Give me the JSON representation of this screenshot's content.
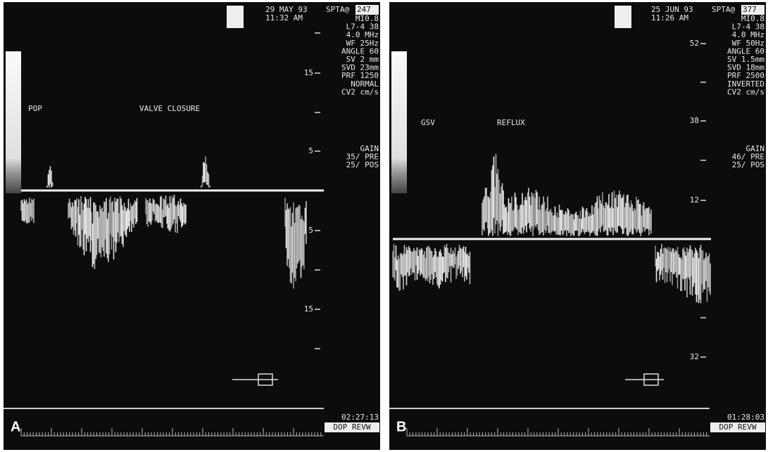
{
  "panels": [
    {
      "label": "A",
      "date": "29 MAY 93",
      "time": "11:32 AM",
      "spta": "SPTA@",
      "spta_value": "247",
      "params": [
        "MI0.8",
        "L7-4 38",
        "4.0 MHz",
        "WF 25Hz",
        "ANGLE 60",
        "SV 2 mm",
        "SVD 23mm",
        "PRF 1250",
        "NORMAL",
        "CV2 cm/s"
      ],
      "gain": [
        "GAIN",
        "35/ PRE",
        "25/ POS"
      ],
      "scale": [
        "15",
        "5",
        "5",
        "15"
      ],
      "vessel": "POP",
      "annotation": "VALVE CLOSURE",
      "timer": "02:27:13",
      "mode": "DOP REVW"
    },
    {
      "label": "B",
      "date": "25 JUN 93",
      "time": "11:26 AM",
      "spta": "SPTA@",
      "spta_value": "377",
      "params": [
        "MI0.8",
        "L7-4 38",
        "4.0 MHz",
        "WF 50Hz",
        "ANGLE 60",
        "SV 1.5mm",
        "SVD 18mm",
        "PRF 2500",
        "INVERTED",
        "CV2 cm/s"
      ],
      "gain": [
        "GAIN",
        "46/ PRE",
        "25/ POS"
      ],
      "scale": [
        "52",
        "38",
        "12",
        "32"
      ],
      "vessel": "GSV",
      "annotation": "REFLUX",
      "timer": "01:28:03",
      "mode": "DOP REVW"
    }
  ]
}
